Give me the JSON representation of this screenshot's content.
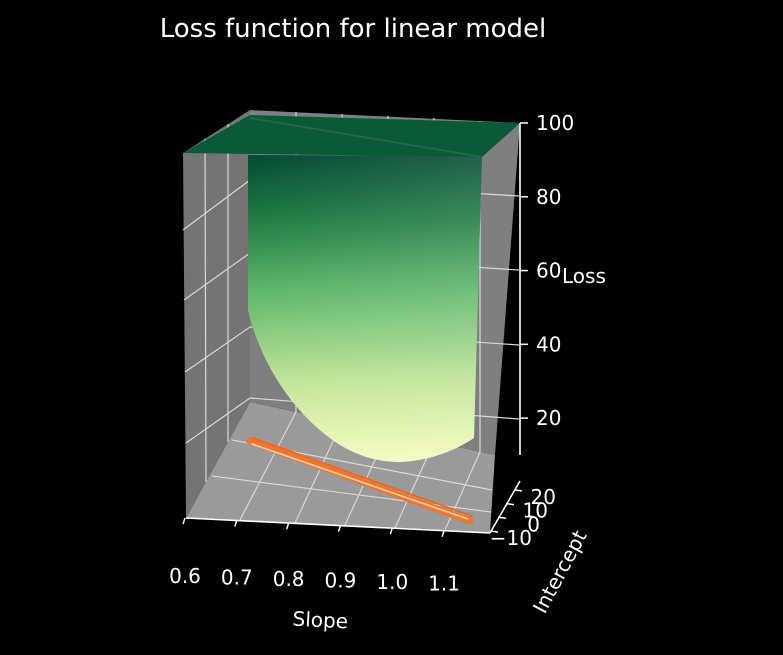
{
  "chart_data": {
    "type": "surface3d",
    "title": "Loss function for linear model",
    "xlabel": "Slope",
    "ylabel": "Intercept",
    "zlabel": "Loss",
    "xlim": [
      0.6,
      1.15
    ],
    "ylim": [
      -10,
      25
    ],
    "zlim": [
      10,
      100
    ],
    "x_ticks": [
      "0.6",
      "0.7",
      "0.8",
      "0.9",
      "1.0",
      "1.1"
    ],
    "y_ticks": [
      "−10",
      "0",
      "10",
      "20"
    ],
    "z_ticks": [
      "20",
      "40",
      "60",
      "80",
      "100"
    ],
    "colormap": "YlGn",
    "surface_clipped_at": 100,
    "minimum_loss": 10,
    "contour": {
      "color": "#f4742a",
      "location": "floor (slope–intercept plane)"
    },
    "pane_color": "#7f7f7f",
    "grid": true
  }
}
